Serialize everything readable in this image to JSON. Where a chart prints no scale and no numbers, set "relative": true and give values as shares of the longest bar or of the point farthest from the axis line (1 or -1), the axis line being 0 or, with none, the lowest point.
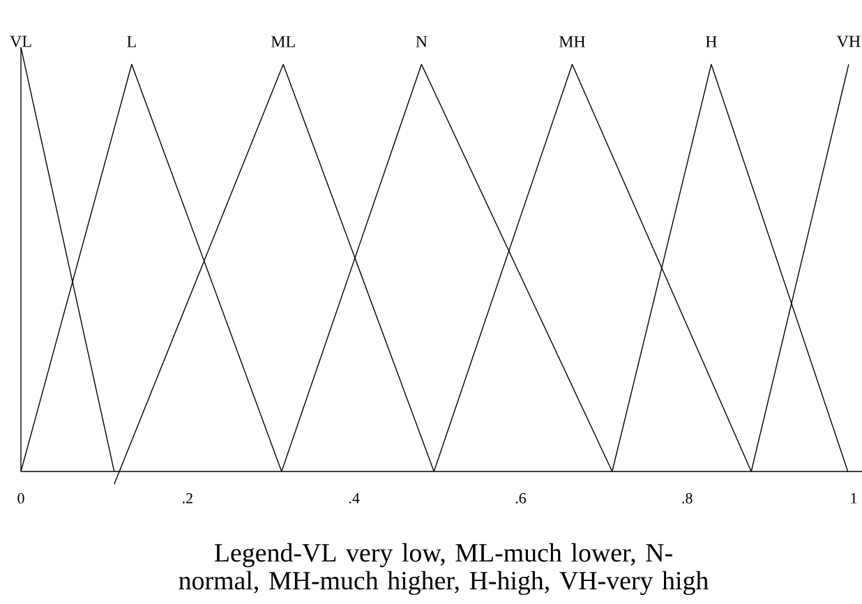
{
  "chart_data": {
    "type": "line",
    "relative": true,
    "xlim": [
      0,
      1.01
    ],
    "xticks": [
      0,
      {
        "value": 0.2,
        "label": ".2"
      },
      {
        "value": 0.4,
        "label": ".4"
      },
      {
        "value": 0.6,
        "label": ".6"
      },
      {
        "value": 0.8,
        "label": ".8"
      },
      1
    ],
    "series": [
      {
        "name": "VL",
        "color": "#000000",
        "x": [
          0,
          0.112
        ],
        "values": [
          1,
          0
        ]
      },
      {
        "name": "L",
        "color": "#000000",
        "x": [
          0,
          0.133,
          0.313
        ],
        "values": [
          0,
          0.96,
          0
        ]
      },
      {
        "name": "ML",
        "color": "#000000",
        "x": [
          0.112,
          0.315,
          0.496
        ],
        "values": [
          -0.03,
          0.96,
          0
        ]
      },
      {
        "name": "N",
        "color": "#000000",
        "x": [
          0.313,
          0.481,
          0.71
        ],
        "values": [
          0,
          0.96,
          0
        ]
      },
      {
        "name": "MH",
        "color": "#000000",
        "x": [
          0.496,
          0.662,
          0.877
        ],
        "values": [
          0,
          0.96,
          0
        ]
      },
      {
        "name": "H",
        "color": "#000000",
        "x": [
          0.71,
          0.829,
          0.993
        ],
        "values": [
          0,
          0.96,
          0
        ]
      },
      {
        "name": "VH",
        "color": "#000000",
        "x": [
          0.877,
          0.994
        ],
        "values": [
          0,
          0.96
        ]
      }
    ],
    "annotations": [
      "Legend-VL very low, ML-much lower, N-normal, MH-much higher, H-high, VH-very high"
    ]
  }
}
